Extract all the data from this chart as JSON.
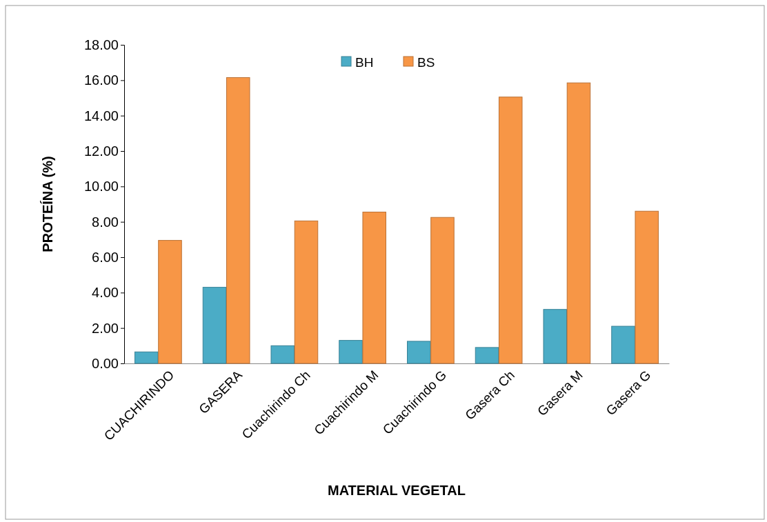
{
  "chart_data": {
    "type": "bar",
    "xlabel": "MATERIAL VEGETAL",
    "ylabel": "PROTEÍNA (%)",
    "categories": [
      "CUACHIRINDO",
      "GASERA",
      "Cuachirindo Ch",
      "Cuachirindo M",
      "Cuachirindo G",
      "Gasera Ch",
      "Gasera M",
      "Gasera G"
    ],
    "series": [
      {
        "name": "BH",
        "color": "#4bacc6",
        "values": [
          0.65,
          4.3,
          1.0,
          1.3,
          1.25,
          0.9,
          3.05,
          2.1
        ]
      },
      {
        "name": "BS",
        "color": "#f79646",
        "values": [
          6.95,
          16.15,
          8.05,
          8.55,
          8.25,
          15.05,
          15.85,
          8.6
        ]
      }
    ],
    "ylim": [
      0,
      18
    ],
    "yticks": [
      {
        "value": 0,
        "label": "0.00"
      },
      {
        "value": 2,
        "label": "2.00"
      },
      {
        "value": 4,
        "label": "4.00"
      },
      {
        "value": 6,
        "label": "6.00"
      },
      {
        "value": 8,
        "label": "8.00"
      },
      {
        "value": 10,
        "label": "10.00"
      },
      {
        "value": 12,
        "label": "12.00"
      },
      {
        "value": 14,
        "label": "14.00"
      },
      {
        "value": 16,
        "label": "16.00"
      },
      {
        "value": 18,
        "label": "18.00"
      }
    ],
    "legend": "top",
    "grid": false
  }
}
